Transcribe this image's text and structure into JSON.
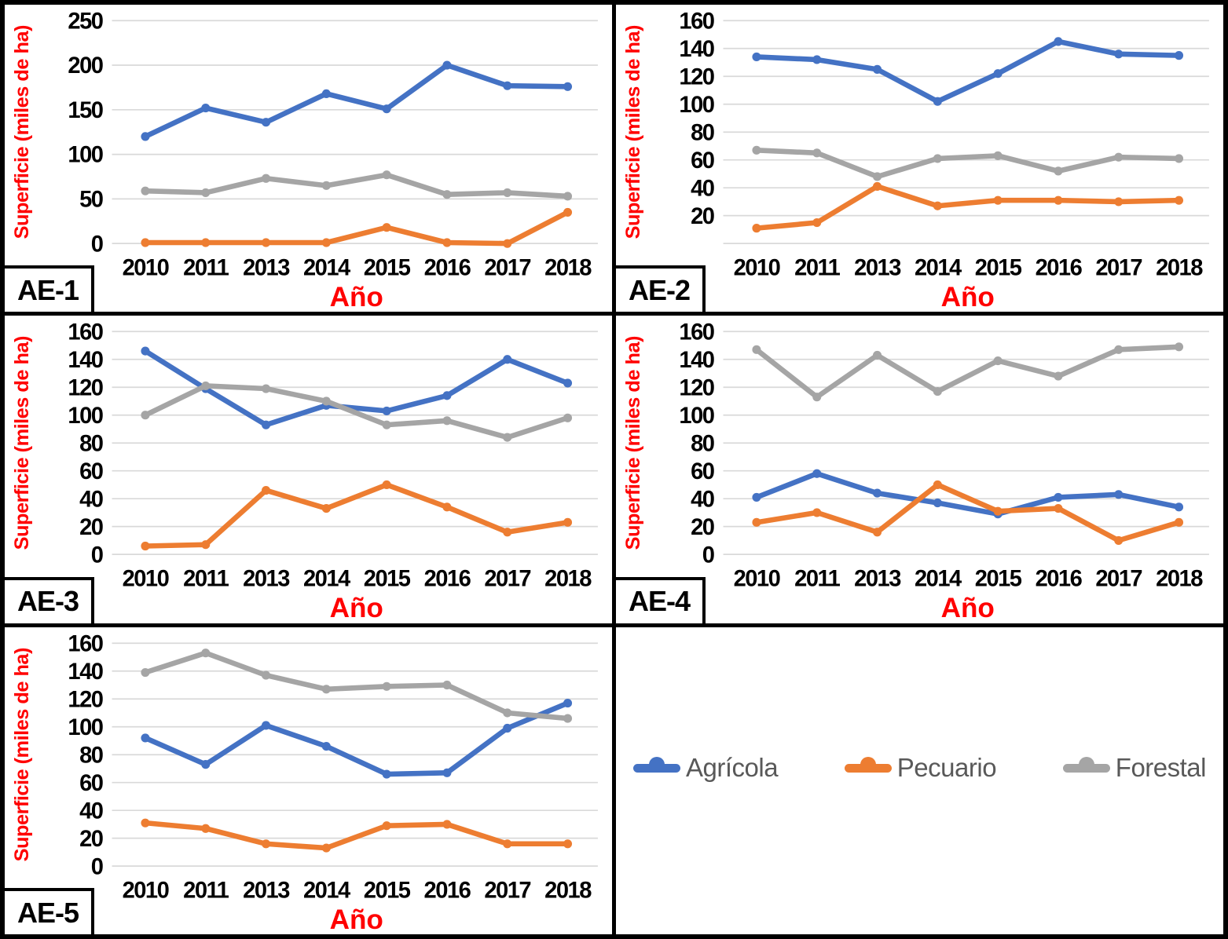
{
  "colors": {
    "agricola": "#4472C4",
    "pecuario": "#ED7D31",
    "forestal": "#A5A5A5",
    "gridline": "#D9D9D9",
    "axis_title": "#FF0000",
    "tick_text": "#000000",
    "legend_text": "#595959",
    "frame": "#000000"
  },
  "legend": {
    "items": [
      {
        "key": "agricola",
        "label": "Agrícola",
        "color": "#4472C4"
      },
      {
        "key": "pecuario",
        "label": "Pecuario",
        "color": "#ED7D31"
      },
      {
        "key": "forestal",
        "label": "Forestal",
        "color": "#A5A5A5"
      }
    ]
  },
  "chart_data": [
    {
      "type": "line",
      "label": "AE-1",
      "xlabel": "Año",
      "ylabel": "Superficie (miles de ha)",
      "x": [
        "2010",
        "2011",
        "2013",
        "2014",
        "2015",
        "2016",
        "2017",
        "2018"
      ],
      "ylim": [
        0,
        250
      ],
      "ystep": 50,
      "ytick_labels": [
        0,
        50,
        100,
        150,
        200,
        250
      ],
      "grid": true,
      "series": [
        {
          "key": "agricola",
          "name": "Agrícola",
          "color": "#4472C4",
          "values": [
            120,
            152,
            136,
            168,
            151,
            200,
            177,
            176
          ]
        },
        {
          "key": "pecuario",
          "name": "Pecuario",
          "color": "#ED7D31",
          "values": [
            1,
            1,
            1,
            1,
            18,
            1,
            0,
            35
          ]
        },
        {
          "key": "forestal",
          "name": "Forestal",
          "color": "#A5A5A5",
          "values": [
            59,
            57,
            73,
            65,
            77,
            55,
            57,
            53
          ]
        }
      ]
    },
    {
      "type": "line",
      "label": "AE-2",
      "xlabel": "Año",
      "ylabel": "Superficie (miles de ha)",
      "x": [
        "2010",
        "2011",
        "2013",
        "2014",
        "2015",
        "2016",
        "2017",
        "2018"
      ],
      "ylim": [
        0,
        160
      ],
      "ystep": 20,
      "ytick_labels": [
        20,
        40,
        60,
        80,
        100,
        120,
        140,
        160
      ],
      "grid": true,
      "series": [
        {
          "key": "agricola",
          "name": "Agrícola",
          "color": "#4472C4",
          "values": [
            134,
            132,
            125,
            102,
            122,
            145,
            136,
            135
          ]
        },
        {
          "key": "pecuario",
          "name": "Pecuario",
          "color": "#ED7D31",
          "values": [
            11,
            15,
            41,
            27,
            31,
            31,
            30,
            31
          ]
        },
        {
          "key": "forestal",
          "name": "Forestal",
          "color": "#A5A5A5",
          "values": [
            67,
            65,
            48,
            61,
            63,
            52,
            62,
            61
          ]
        }
      ]
    },
    {
      "type": "line",
      "label": "AE-3",
      "xlabel": "Año",
      "ylabel": "Superficie (miles de ha)",
      "x": [
        "2010",
        "2011",
        "2013",
        "2014",
        "2015",
        "2016",
        "2017",
        "2018"
      ],
      "ylim": [
        0,
        160
      ],
      "ystep": 20,
      "ytick_labels": [
        0,
        20,
        40,
        60,
        80,
        100,
        120,
        140,
        160
      ],
      "grid": true,
      "series": [
        {
          "key": "agricola",
          "name": "Agrícola",
          "color": "#4472C4",
          "values": [
            146,
            119,
            93,
            107,
            103,
            114,
            140,
            123
          ]
        },
        {
          "key": "pecuario",
          "name": "Pecuario",
          "color": "#ED7D31",
          "values": [
            6,
            7,
            46,
            33,
            50,
            34,
            16,
            23
          ]
        },
        {
          "key": "forestal",
          "name": "Forestal",
          "color": "#A5A5A5",
          "values": [
            100,
            121,
            119,
            110,
            93,
            96,
            84,
            98
          ]
        }
      ]
    },
    {
      "type": "line",
      "label": "AE-4",
      "xlabel": "Año",
      "ylabel": "Superficie (miles de ha)",
      "x": [
        "2010",
        "2011",
        "2013",
        "2014",
        "2015",
        "2016",
        "2017",
        "2018"
      ],
      "ylim": [
        0,
        160
      ],
      "ystep": 20,
      "ytick_labels": [
        0,
        20,
        40,
        60,
        80,
        100,
        120,
        140,
        160
      ],
      "grid": true,
      "series": [
        {
          "key": "agricola",
          "name": "Agrícola",
          "color": "#4472C4",
          "values": [
            41,
            58,
            44,
            37,
            29,
            41,
            43,
            34
          ]
        },
        {
          "key": "pecuario",
          "name": "Pecuario",
          "color": "#ED7D31",
          "values": [
            23,
            30,
            16,
            50,
            31,
            33,
            10,
            23
          ]
        },
        {
          "key": "forestal",
          "name": "Forestal",
          "color": "#A5A5A5",
          "values": [
            147,
            113,
            143,
            117,
            139,
            128,
            147,
            149
          ]
        }
      ]
    },
    {
      "type": "line",
      "label": "AE-5",
      "xlabel": "Año",
      "ylabel": "Superficie (miles de ha)",
      "x": [
        "2010",
        "2011",
        "2013",
        "2014",
        "2015",
        "2016",
        "2017",
        "2018"
      ],
      "ylim": [
        0,
        160
      ],
      "ystep": 20,
      "ytick_labels": [
        0,
        20,
        40,
        60,
        80,
        100,
        120,
        140,
        160
      ],
      "grid": true,
      "series": [
        {
          "key": "agricola",
          "name": "Agrícola",
          "color": "#4472C4",
          "values": [
            92,
            73,
            101,
            86,
            66,
            67,
            99,
            117
          ]
        },
        {
          "key": "pecuario",
          "name": "Pecuario",
          "color": "#ED7D31",
          "values": [
            31,
            27,
            16,
            13,
            29,
            30,
            16,
            16
          ]
        },
        {
          "key": "forestal",
          "name": "Forestal",
          "color": "#A5A5A5",
          "values": [
            139,
            153,
            137,
            127,
            129,
            130,
            110,
            106
          ]
        }
      ]
    }
  ]
}
